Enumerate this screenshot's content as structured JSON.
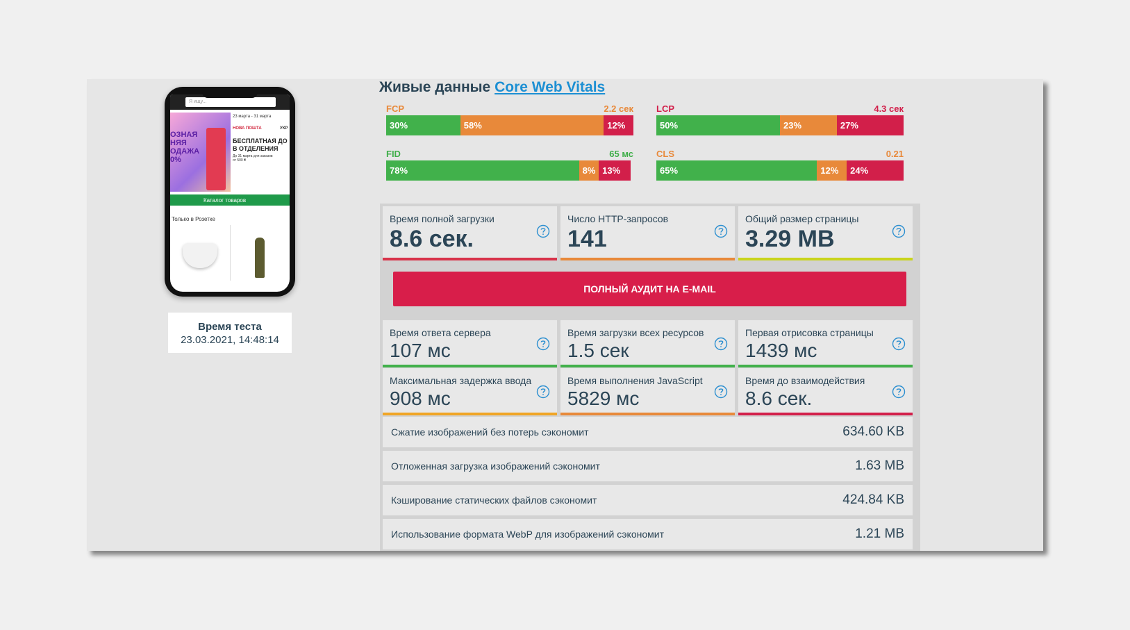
{
  "phone": {
    "search_placeholder": "Я ищу...",
    "banner_dates": "23 марта - 31 марта",
    "banner_left": [
      "ОЗНАЯ",
      "НЯЯ",
      "ОДАЖА",
      "0%"
    ],
    "banner_brand": "НОВА ПОШТА",
    "banner_brand_2": "УКР",
    "banner_headline": [
      "БЕСПЛАТНАЯ ДО",
      "В ОТДЕЛЕНИЯ"
    ],
    "banner_note": [
      "До 31 марта для заказов",
      "от 500 ₴"
    ],
    "catalog": "Каталог товаров",
    "section": "Только в Розетке"
  },
  "test_time": {
    "label": "Время теста",
    "value": "23.03.2021, 14:48:14"
  },
  "vitals": {
    "title_prefix": "Живые данные",
    "title_link": "Core Web Vitals",
    "metrics": [
      {
        "name": "FCP",
        "value": "2.2 сек",
        "color": "#e8893a",
        "segments": [
          {
            "value": 30,
            "label": "30%"
          },
          {
            "value": 58,
            "label": "58%"
          },
          {
            "value": 12,
            "label": "12%"
          }
        ]
      },
      {
        "name": "LCP",
        "value": "4.3 сек",
        "color": "#d21f4a",
        "segments": [
          {
            "value": 50,
            "label": "50%"
          },
          {
            "value": 23,
            "label": "23%"
          },
          {
            "value": 27,
            "label": "27%"
          }
        ]
      },
      {
        "name": "FID",
        "value": "65 мс",
        "color": "#3fae49",
        "segments": [
          {
            "value": 78,
            "label": "78%"
          },
          {
            "value": 8,
            "label": "8%"
          },
          {
            "value": 13,
            "label": "13%"
          }
        ]
      },
      {
        "name": "CLS",
        "value": "0.21",
        "color": "#e8893a",
        "segments": [
          {
            "value": 65,
            "label": "65%"
          },
          {
            "value": 12,
            "label": "12%"
          },
          {
            "value": 24,
            "label": "24%"
          }
        ]
      }
    ],
    "segment_colors": [
      "#41b14b",
      "#e8893a",
      "#d21f4a"
    ]
  },
  "summary": [
    {
      "label": "Время полной загрузки",
      "value": "8.6 сек.",
      "color": "#d8334a"
    },
    {
      "label": "Число HTTP-запросов",
      "value": "141",
      "color": "#e8893a"
    },
    {
      "label": "Общий размер страницы",
      "value": "3.29 MB",
      "color": "#c9d41c"
    }
  ],
  "audit_button": "ПОЛНЫЙ АУДИТ НА E-MAIL",
  "details": [
    {
      "label": "Время ответа сервера",
      "value": "107 мс",
      "color": "#41b14b"
    },
    {
      "label": "Время загрузки всех ресурсов",
      "value": "1.5 сек",
      "color": "#41b14b"
    },
    {
      "label": "Первая отрисовка страницы",
      "value": "1439 мс",
      "color": "#41b14b"
    },
    {
      "label": "Максимальная задержка ввода",
      "value": "908 мс",
      "color": "#f0a525"
    },
    {
      "label": "Время выполнения JavaScript",
      "value": "5829 мс",
      "color": "#e8893a"
    },
    {
      "label": "Время до взаимодействия",
      "value": "8.6 сек.",
      "color": "#d21f4a"
    }
  ],
  "savings": [
    {
      "label": "Сжатие изображений без потерь сэкономит",
      "value": "634.60 KB"
    },
    {
      "label": "Отложенная загрузка изображений сэкономит",
      "value": "1.63 MB"
    },
    {
      "label": "Кэширование статических файлов сэкономит",
      "value": "424.84 KB"
    },
    {
      "label": "Использование формата WebP для изображений сэкономит",
      "value": "1.21 MB"
    }
  ]
}
